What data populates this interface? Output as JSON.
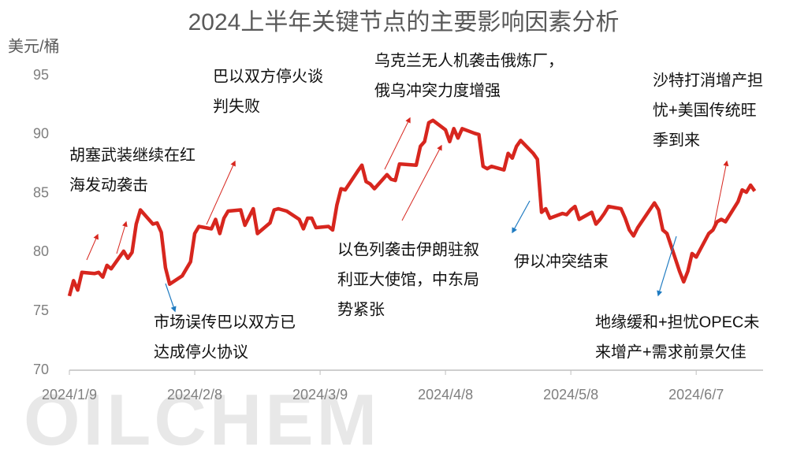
{
  "chart_data": {
    "type": "line",
    "title": "2024上半年关键节点的主要影响因素分析",
    "y_label": "美元/桶",
    "watermark": "OILCHEM",
    "color": "#d7261e",
    "x": [
      "2024/1/9",
      "2024/1/10",
      "2024/1/11",
      "2024/1/12",
      "2024/1/15",
      "2024/1/16",
      "2024/1/17",
      "2024/1/18",
      "2024/1/19",
      "2024/1/22",
      "2024/1/23",
      "2024/1/24",
      "2024/1/25",
      "2024/1/26",
      "2024/1/29",
      "2024/1/30",
      "2024/1/31",
      "2024/2/1",
      "2024/2/2",
      "2024/2/5",
      "2024/2/6",
      "2024/2/7",
      "2024/2/8",
      "2024/2/9",
      "2024/2/12",
      "2024/2/13",
      "2024/2/14",
      "2024/2/15",
      "2024/2/16",
      "2024/2/19",
      "2024/2/20",
      "2024/2/21",
      "2024/2/22",
      "2024/2/23",
      "2024/2/26",
      "2024/2/27",
      "2024/2/28",
      "2024/2/29",
      "2024/3/1",
      "2024/3/4",
      "2024/3/5",
      "2024/3/6",
      "2024/3/7",
      "2024/3/8",
      "2024/3/11",
      "2024/3/12",
      "2024/3/13",
      "2024/3/14",
      "2024/3/15",
      "2024/3/18",
      "2024/3/19",
      "2024/3/20",
      "2024/3/21",
      "2024/3/22",
      "2024/3/25",
      "2024/3/26",
      "2024/3/27",
      "2024/3/28",
      "2024/4/1",
      "2024/4/2",
      "2024/4/3",
      "2024/4/4",
      "2024/4/5",
      "2024/4/8",
      "2024/4/9",
      "2024/4/10",
      "2024/4/11",
      "2024/4/12",
      "2024/4/15",
      "2024/4/16",
      "2024/4/17",
      "2024/4/18",
      "2024/4/19",
      "2024/4/22",
      "2024/4/23",
      "2024/4/24",
      "2024/4/25",
      "2024/4/26",
      "2024/4/29",
      "2024/4/30",
      "2024/5/1",
      "2024/5/2",
      "2024/5/3",
      "2024/5/6",
      "2024/5/7",
      "2024/5/8",
      "2024/5/9",
      "2024/5/10",
      "2024/5/13",
      "2024/5/14",
      "2024/5/15",
      "2024/5/16",
      "2024/5/17",
      "2024/5/20",
      "2024/5/21",
      "2024/5/22",
      "2024/5/23",
      "2024/5/24",
      "2024/5/28",
      "2024/5/29",
      "2024/5/30",
      "2024/5/31",
      "2024/6/3",
      "2024/6/4",
      "2024/6/5",
      "2024/6/6",
      "2024/6/7",
      "2024/6/10",
      "2024/6/11",
      "2024/6/12",
      "2024/6/13",
      "2024/6/14",
      "2024/6/17",
      "2024/6/18",
      "2024/6/19",
      "2024/6/20",
      "2024/6/21"
    ],
    "values": [
      76.3,
      77.6,
      76.8,
      78.3,
      78.2,
      78.3,
      77.9,
      78.9,
      78.6,
      80.1,
      79.5,
      80.0,
      82.4,
      83.6,
      82.4,
      82.5,
      81.7,
      78.7,
      77.3,
      78.0,
      78.6,
      79.2,
      81.6,
      82.2,
      82.0,
      82.8,
      81.6,
      82.9,
      83.5,
      83.6,
      82.3,
      83.0,
      83.7,
      81.6,
      82.5,
      83.6,
      83.7,
      83.6,
      83.5,
      82.8,
      82.0,
      82.9,
      82.9,
      82.1,
      82.2,
      81.9,
      84.0,
      85.4,
      85.3,
      86.9,
      87.4,
      86.0,
      85.8,
      85.4,
      86.6,
      86.2,
      86.1,
      87.5,
      87.4,
      89.0,
      89.4,
      91.0,
      91.2,
      90.4,
      89.4,
      90.5,
      89.7,
      90.5,
      90.1,
      90.0,
      87.3,
      87.1,
      87.3,
      87.0,
      88.4,
      88.0,
      89.0,
      89.5,
      88.4,
      87.9,
      83.4,
      83.7,
      82.9,
      83.3,
      83.2,
      83.6,
      83.9,
      82.8,
      83.4,
      82.4,
      82.8,
      83.3,
      83.9,
      83.7,
      82.9,
      81.9,
      81.4,
      82.1,
      84.2,
      83.6,
      81.9,
      81.6,
      78.4,
      77.5,
      78.4,
      79.9,
      79.6,
      81.6,
      81.9,
      82.6,
      82.8,
      82.6,
      84.3,
      85.3,
      85.1,
      85.7,
      85.2
    ],
    "xlim": [
      "2024/1/9",
      "2024/6/23"
    ],
    "xticks": [
      "2024/1/9",
      "2024/2/8",
      "2024/3/9",
      "2024/4/8",
      "2024/5/8",
      "2024/6/7"
    ],
    "ylim": [
      70,
      96
    ],
    "yticks": [
      70,
      75,
      80,
      85,
      90,
      95
    ],
    "grid": false,
    "annotations": [
      {
        "lines": [
          "胡塞武装继续在红",
          "海发动袭击"
        ],
        "direction": "up"
      },
      {
        "lines": [
          "市场误传巴以双方已",
          "达成停火协议"
        ],
        "direction": "down"
      },
      {
        "lines": [
          "巴以双方停火谈",
          "判失败"
        ],
        "direction": "up"
      },
      {
        "lines": [
          "乌克兰无人机袭击俄炼厂，",
          "俄乌冲突力度增强"
        ],
        "direction": "up"
      },
      {
        "lines": [
          "以色列袭击伊朗驻叙",
          "利亚大使馆，中东局",
          "势紧张"
        ],
        "direction": "up"
      },
      {
        "lines": [
          "伊以冲突结束"
        ],
        "direction": "down"
      },
      {
        "lines": [
          "沙特打消增产担",
          "忧+美国传统旺",
          "季到来"
        ],
        "direction": "up"
      },
      {
        "lines": [
          "地缘缓和+担忧OPEC未",
          "来增产+需求前景欠佳"
        ],
        "direction": "down"
      }
    ]
  }
}
